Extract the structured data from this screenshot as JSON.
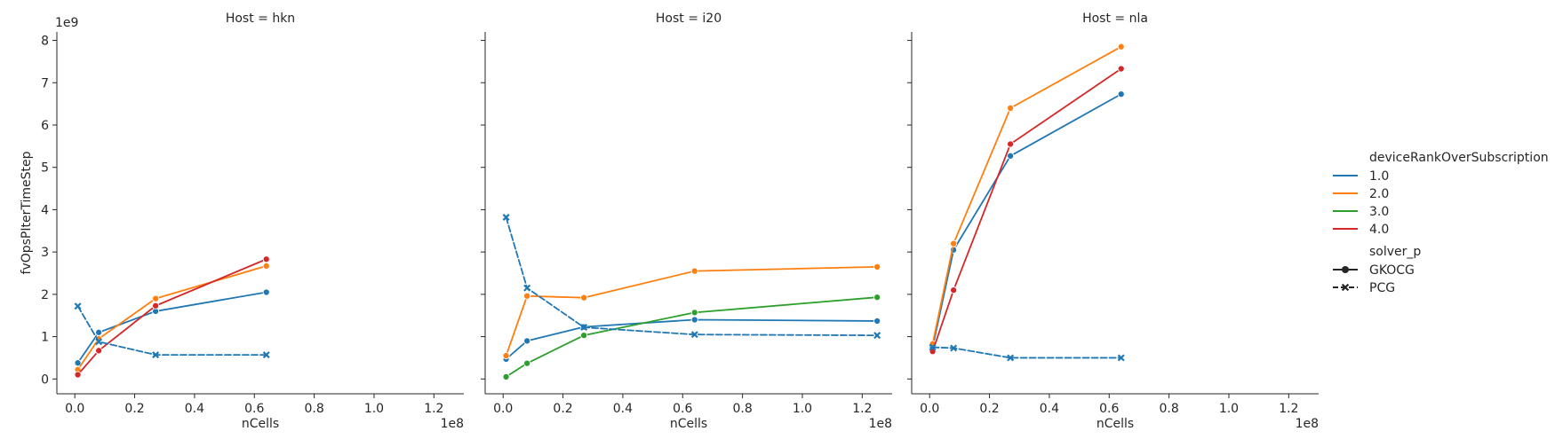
{
  "chart_data": {
    "type": "line",
    "ylabel": "fvOpsPIterTimeStep",
    "xlabel": "nCells",
    "x_offset_label": "1e8",
    "y_offset_label": "1e9",
    "x_ticks": [
      "0.0",
      "0.2",
      "0.4",
      "0.6",
      "0.8",
      "1.0",
      "1.2"
    ],
    "x_tick_values": [
      0.0,
      0.2,
      0.4,
      0.6,
      0.8,
      1.0,
      1.2
    ],
    "y_ticks": [
      "0",
      "1",
      "2",
      "3",
      "4",
      "5",
      "6",
      "7",
      "8"
    ],
    "y_tick_values": [
      0,
      1,
      2,
      3,
      4,
      5,
      6,
      7,
      8
    ],
    "xlim": [
      -0.06,
      1.3
    ],
    "ylim": [
      -0.35,
      8.2
    ],
    "hue_colors": {
      "1.0": "#1f77b4",
      "2.0": "#ff7f0e",
      "3.0": "#2ca02c",
      "4.0": "#d62728"
    },
    "panels": [
      {
        "title": "Host = hkn",
        "series": [
          {
            "hue": "1.0",
            "style": "GKOCG",
            "x": [
              0.01,
              0.08,
              0.27,
              0.64
            ],
            "y": [
              0.38,
              1.1,
              1.6,
              2.05
            ]
          },
          {
            "hue": "2.0",
            "style": "GKOCG",
            "x": [
              0.01,
              0.08,
              0.27,
              0.64
            ],
            "y": [
              0.22,
              0.95,
              1.9,
              2.67
            ]
          },
          {
            "hue": "4.0",
            "style": "GKOCG",
            "x": [
              0.01,
              0.08,
              0.27,
              0.64
            ],
            "y": [
              0.1,
              0.67,
              1.73,
              2.83
            ]
          },
          {
            "hue": "1.0",
            "style": "PCG",
            "x": [
              0.01,
              0.08,
              0.27,
              0.64
            ],
            "y": [
              1.72,
              0.88,
              0.57,
              0.57
            ]
          }
        ]
      },
      {
        "title": "Host = i20",
        "series": [
          {
            "hue": "1.0",
            "style": "GKOCG",
            "x": [
              0.01,
              0.08,
              0.27,
              0.64,
              1.25
            ],
            "y": [
              0.47,
              0.9,
              1.23,
              1.4,
              1.37
            ]
          },
          {
            "hue": "2.0",
            "style": "GKOCG",
            "x": [
              0.01,
              0.08,
              0.27,
              0.64,
              1.25
            ],
            "y": [
              0.55,
              1.96,
              1.92,
              2.55,
              2.65
            ]
          },
          {
            "hue": "3.0",
            "style": "GKOCG",
            "x": [
              0.01,
              0.08,
              0.27,
              0.64,
              1.25
            ],
            "y": [
              0.05,
              0.37,
              1.03,
              1.57,
              1.93
            ]
          },
          {
            "hue": "1.0",
            "style": "PCG",
            "x": [
              0.01,
              0.08,
              0.27,
              0.64,
              1.25
            ],
            "y": [
              3.82,
              2.15,
              1.22,
              1.05,
              1.03
            ]
          }
        ]
      },
      {
        "title": "Host = nla",
        "series": [
          {
            "hue": "1.0",
            "style": "GKOCG",
            "x": [
              0.01,
              0.08,
              0.27,
              0.64
            ],
            "y": [
              0.75,
              3.05,
              5.27,
              6.73
            ]
          },
          {
            "hue": "2.0",
            "style": "GKOCG",
            "x": [
              0.01,
              0.08,
              0.27,
              0.64
            ],
            "y": [
              0.83,
              3.2,
              6.4,
              7.85
            ]
          },
          {
            "hue": "4.0",
            "style": "GKOCG",
            "x": [
              0.01,
              0.08,
              0.27,
              0.64
            ],
            "y": [
              0.65,
              2.1,
              5.55,
              7.33
            ]
          },
          {
            "hue": "1.0",
            "style": "PCG",
            "x": [
              0.01,
              0.08,
              0.27,
              0.64
            ],
            "y": [
              0.75,
              0.73,
              0.5,
              0.5
            ]
          }
        ]
      }
    ],
    "legend": {
      "placement": "right",
      "hue_title": "deviceRankOverSubscription",
      "hue_items": [
        "1.0",
        "2.0",
        "3.0",
        "4.0"
      ],
      "style_title": "solver_p",
      "style_items": [
        "GKOCG",
        "PCG"
      ]
    }
  }
}
